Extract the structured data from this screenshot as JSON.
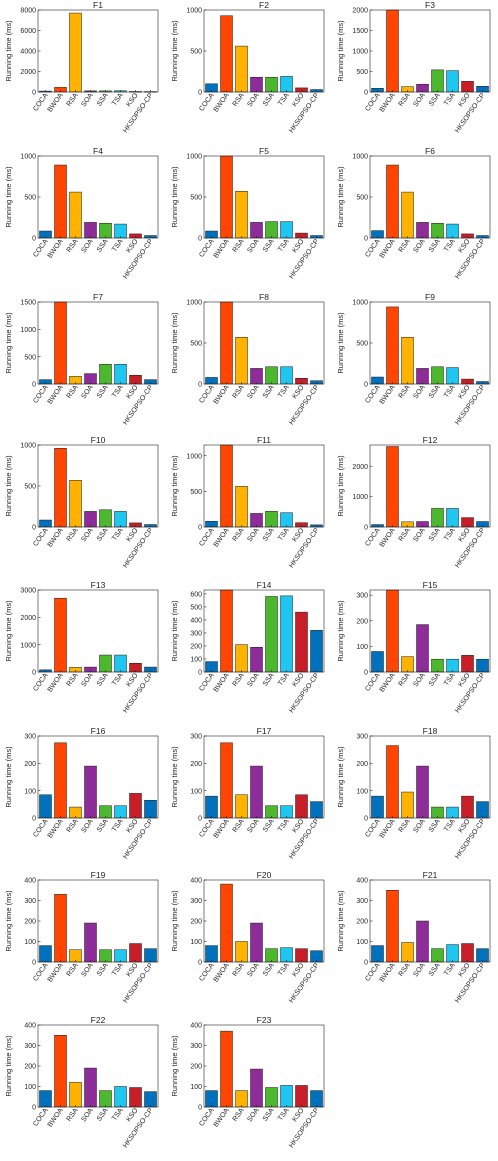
{
  "categories": [
    "COCA",
    "BWOA",
    "RSA",
    "SOA",
    "SSA",
    "TSA",
    "KSO",
    "HKSOPSO-CP"
  ],
  "colors": [
    "#0072BD",
    "#FF4500",
    "#FFB300",
    "#8E2C9A",
    "#4CB82E",
    "#1EC6F0",
    "#C81E28",
    "#0072BD"
  ],
  "ylabel": "Running time (ms)",
  "chart_data": [
    {
      "type": "bar",
      "title": "F1",
      "ylim": [
        0,
        8000
      ],
      "yticks": [
        0,
        2000,
        4000,
        6000,
        8000
      ],
      "values": [
        90,
        450,
        7700,
        110,
        110,
        120,
        50,
        40
      ]
    },
    {
      "type": "bar",
      "title": "F2",
      "ylim": [
        0,
        1000
      ],
      "yticks": [
        0,
        500,
        1000
      ],
      "values": [
        100,
        930,
        560,
        180,
        180,
        190,
        50,
        30
      ]
    },
    {
      "type": "bar",
      "title": "F3",
      "ylim": [
        0,
        2000
      ],
      "yticks": [
        0,
        500,
        1000,
        1500,
        2000
      ],
      "values": [
        90,
        2000,
        130,
        190,
        540,
        520,
        260,
        140
      ]
    },
    {
      "type": "bar",
      "title": "F4",
      "ylim": [
        0,
        1000
      ],
      "yticks": [
        0,
        500,
        1000
      ],
      "values": [
        85,
        890,
        560,
        190,
        180,
        170,
        50,
        30
      ]
    },
    {
      "type": "bar",
      "title": "F5",
      "ylim": [
        0,
        1000
      ],
      "yticks": [
        0,
        500,
        1000
      ],
      "values": [
        85,
        1000,
        570,
        190,
        200,
        200,
        60,
        30
      ]
    },
    {
      "type": "bar",
      "title": "F6",
      "ylim": [
        0,
        1000
      ],
      "yticks": [
        0,
        500,
        1000
      ],
      "values": [
        90,
        890,
        560,
        190,
        180,
        170,
        50,
        30
      ]
    },
    {
      "type": "bar",
      "title": "F7",
      "ylim": [
        0,
        1500
      ],
      "yticks": [
        0,
        500,
        1000,
        1500
      ],
      "values": [
        80,
        1500,
        140,
        190,
        360,
        360,
        160,
        80
      ]
    },
    {
      "type": "bar",
      "title": "F8",
      "ylim": [
        0,
        1000
      ],
      "yticks": [
        0,
        500,
        1000
      ],
      "values": [
        80,
        1000,
        570,
        190,
        210,
        210,
        70,
        40
      ]
    },
    {
      "type": "bar",
      "title": "F9",
      "ylim": [
        0,
        1000
      ],
      "yticks": [
        0,
        500,
        1000
      ],
      "values": [
        85,
        940,
        570,
        190,
        210,
        200,
        60,
        30
      ]
    },
    {
      "type": "bar",
      "title": "F10",
      "ylim": [
        0,
        1000
      ],
      "yticks": [
        0,
        500,
        1000
      ],
      "values": [
        85,
        960,
        570,
        190,
        210,
        190,
        50,
        30
      ]
    },
    {
      "type": "bar",
      "title": "F11",
      "ylim": [
        0,
        1150
      ],
      "yticks": [
        0,
        500,
        1000
      ],
      "values": [
        80,
        1150,
        570,
        190,
        220,
        200,
        60,
        30
      ]
    },
    {
      "type": "bar",
      "title": "F12",
      "ylim": [
        0,
        2700
      ],
      "yticks": [
        0,
        1000,
        2000
      ],
      "values": [
        80,
        2650,
        170,
        180,
        610,
        610,
        310,
        180
      ]
    },
    {
      "type": "bar",
      "title": "F13",
      "ylim": [
        0,
        3000
      ],
      "yticks": [
        0,
        1000,
        2000,
        3000
      ],
      "values": [
        80,
        2700,
        170,
        180,
        620,
        620,
        320,
        180
      ]
    },
    {
      "type": "bar",
      "title": "F14",
      "ylim": [
        0,
        630
      ],
      "yticks": [
        0,
        100,
        200,
        300,
        400,
        500,
        600
      ],
      "values": [
        80,
        630,
        210,
        190,
        580,
        585,
        460,
        320
      ]
    },
    {
      "type": "bar",
      "title": "F15",
      "ylim": [
        0,
        320
      ],
      "yticks": [
        0,
        100,
        200,
        300
      ],
      "values": [
        80,
        320,
        60,
        185,
        50,
        50,
        65,
        50
      ]
    },
    {
      "type": "bar",
      "title": "F16",
      "ylim": [
        0,
        300
      ],
      "yticks": [
        0,
        100,
        200,
        300
      ],
      "values": [
        85,
        275,
        40,
        190,
        45,
        45,
        90,
        65
      ]
    },
    {
      "type": "bar",
      "title": "F17",
      "ylim": [
        0,
        300
      ],
      "yticks": [
        0,
        100,
        200,
        300
      ],
      "values": [
        80,
        275,
        85,
        190,
        45,
        45,
        85,
        60
      ]
    },
    {
      "type": "bar",
      "title": "F18",
      "ylim": [
        0,
        300
      ],
      "yticks": [
        0,
        100,
        200,
        300
      ],
      "values": [
        80,
        265,
        95,
        190,
        40,
        40,
        80,
        60
      ]
    },
    {
      "type": "bar",
      "title": "F19",
      "ylim": [
        0,
        400
      ],
      "yticks": [
        0,
        100,
        200,
        300,
        400
      ],
      "values": [
        80,
        330,
        60,
        190,
        60,
        60,
        90,
        65
      ]
    },
    {
      "type": "bar",
      "title": "F20",
      "ylim": [
        0,
        400
      ],
      "yticks": [
        0,
        100,
        200,
        300,
        400
      ],
      "values": [
        80,
        380,
        100,
        190,
        65,
        70,
        65,
        55
      ]
    },
    {
      "type": "bar",
      "title": "F21",
      "ylim": [
        0,
        400
      ],
      "yticks": [
        0,
        100,
        200,
        300,
        400
      ],
      "values": [
        80,
        350,
        95,
        200,
        65,
        85,
        90,
        65
      ]
    },
    {
      "type": "bar",
      "title": "F22",
      "ylim": [
        0,
        400
      ],
      "yticks": [
        0,
        100,
        200,
        300,
        400
      ],
      "values": [
        80,
        350,
        120,
        190,
        80,
        100,
        95,
        75
      ]
    },
    {
      "type": "bar",
      "title": "F23",
      "ylim": [
        0,
        400
      ],
      "yticks": [
        0,
        100,
        200,
        300,
        400
      ],
      "values": [
        80,
        370,
        80,
        185,
        95,
        105,
        105,
        80
      ]
    }
  ]
}
